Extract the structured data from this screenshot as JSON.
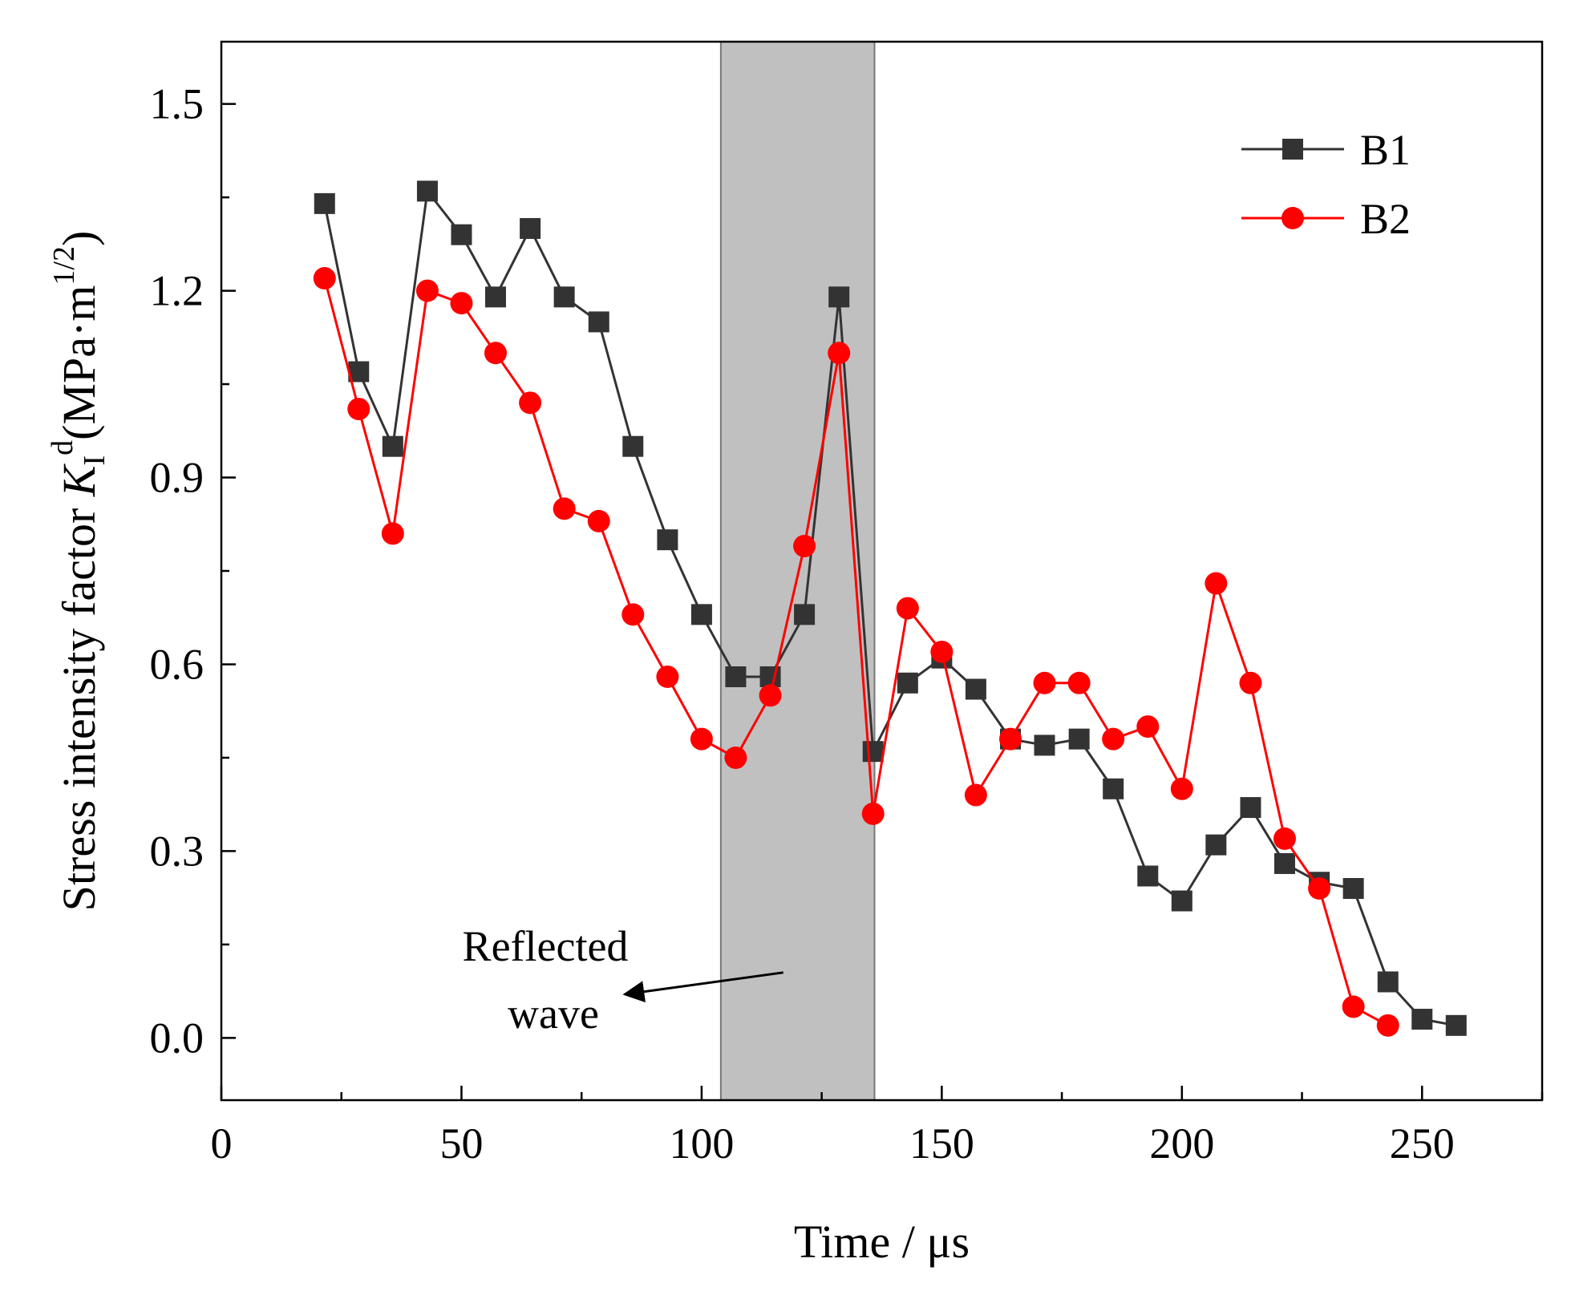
{
  "chart_data": {
    "type": "line",
    "xlabel": "Time / μs",
    "ylabel": {
      "prefix": "Stress intensity factor ",
      "symbol": "K",
      "subscript": "I",
      "superscript": "d",
      "unit_open": "(MPa·m",
      "unit_power": "1/2",
      "unit_close": ")"
    },
    "xlim": [
      0,
      275
    ],
    "ylim": [
      -0.1,
      1.6
    ],
    "x_ticks": [
      0,
      50,
      100,
      150,
      200,
      250
    ],
    "x_tick_labels": [
      "0",
      "50",
      "100",
      "150",
      "200",
      "250"
    ],
    "y_ticks": [
      0.0,
      0.3,
      0.6,
      0.9,
      1.2,
      1.5
    ],
    "y_tick_labels": [
      "0.0",
      "0.3",
      "0.6",
      "0.9",
      "1.2",
      "1.5"
    ],
    "shaded_region": {
      "x_start": 104,
      "x_end": 136,
      "color": "#c0c0c0"
    },
    "annotation": {
      "lines": [
        "Reflected",
        "wave"
      ],
      "arrow_from": [
        117,
        0.105
      ],
      "arrow_to": [
        84,
        0.07
      ]
    },
    "legend_position": "top-right",
    "series": [
      {
        "name": "B1",
        "color": "#333333",
        "marker": "square",
        "x": [
          21.5,
          28.6,
          35.7,
          42.9,
          50.0,
          57.1,
          64.3,
          71.4,
          78.6,
          85.7,
          92.9,
          100.0,
          107.1,
          114.3,
          121.4,
          128.6,
          135.7,
          142.9,
          150.0,
          157.1,
          164.3,
          171.4,
          178.6,
          185.7,
          192.9,
          200.0,
          207.1,
          214.3,
          221.4,
          228.6,
          235.7,
          242.9,
          250.0,
          257.1
        ],
        "values": [
          1.34,
          1.07,
          0.95,
          1.36,
          1.29,
          1.19,
          1.3,
          1.19,
          1.15,
          0.95,
          0.8,
          0.68,
          0.58,
          0.58,
          0.68,
          1.19,
          0.46,
          0.57,
          0.61,
          0.56,
          0.48,
          0.47,
          0.48,
          0.4,
          0.26,
          0.22,
          0.31,
          0.37,
          0.28,
          0.25,
          0.24,
          0.09,
          0.03,
          0.02
        ]
      },
      {
        "name": "B2",
        "color": "#ff0000",
        "marker": "circle",
        "x": [
          21.5,
          28.6,
          35.7,
          42.9,
          50.0,
          57.1,
          64.3,
          71.4,
          78.6,
          85.7,
          92.9,
          100.0,
          107.1,
          114.3,
          121.4,
          128.6,
          135.7,
          142.9,
          150.0,
          157.1,
          164.3,
          171.4,
          178.6,
          185.7,
          192.9,
          200.0,
          207.1,
          214.3,
          221.4,
          228.6,
          235.7,
          242.9
        ],
        "values": [
          1.22,
          1.01,
          0.81,
          1.2,
          1.18,
          1.1,
          1.02,
          0.85,
          0.83,
          0.68,
          0.58,
          0.48,
          0.45,
          0.55,
          0.79,
          1.1,
          0.36,
          0.69,
          0.62,
          0.39,
          0.48,
          0.57,
          0.57,
          0.48,
          0.5,
          0.4,
          0.73,
          0.57,
          0.32,
          0.24,
          0.05,
          0.02
        ]
      }
    ]
  }
}
